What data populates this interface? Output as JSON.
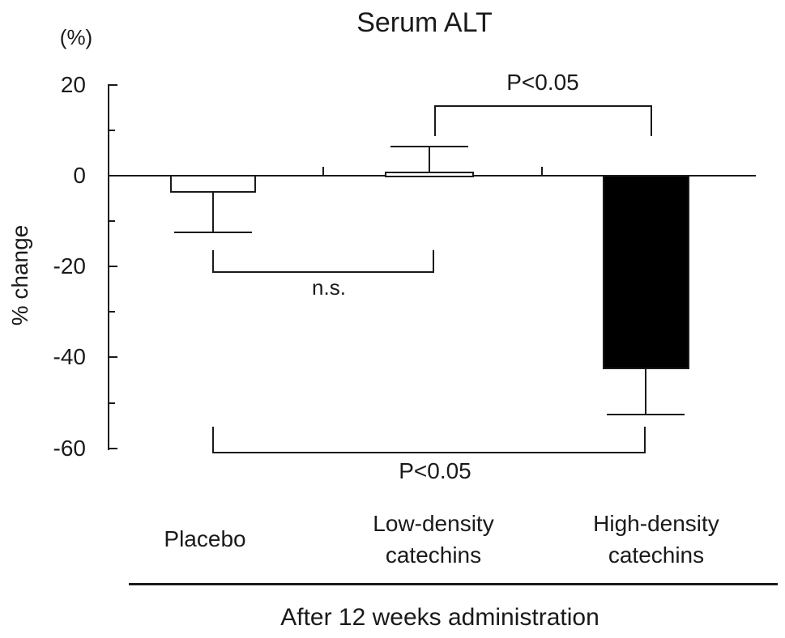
{
  "chart_data": {
    "type": "bar",
    "title": "Serum ALT",
    "ylabel": "% change",
    "xlabel": "After 12 weeks administration",
    "y_axis": {
      "unit": "(%)",
      "range": [
        -60,
        20
      ],
      "major_tick_step": 20,
      "minor_tick_step": 10,
      "ticks": [
        {
          "value": 20,
          "label": "20",
          "major": true
        },
        {
          "value": 10,
          "label": "",
          "major": false
        },
        {
          "value": 0,
          "label": "0",
          "major": true
        },
        {
          "value": -10,
          "label": "",
          "major": false
        },
        {
          "value": -20,
          "label": "-20",
          "major": true
        },
        {
          "value": -30,
          "label": "",
          "major": false
        },
        {
          "value": -40,
          "label": "-40",
          "major": true
        },
        {
          "value": -50,
          "label": "",
          "major": false
        },
        {
          "value": -60,
          "label": "-60",
          "major": true
        }
      ]
    },
    "categories": [
      "Placebo",
      "Low-density catechins",
      "High-density catechins"
    ],
    "category_lines": [
      [
        "Placebo"
      ],
      [
        "Low-density",
        "catechins"
      ],
      [
        "High-density",
        "catechins"
      ]
    ],
    "series": [
      {
        "category": "Placebo",
        "value": -3.5,
        "error": 9,
        "fill": "#ffffff"
      },
      {
        "category": "Low-density catechins",
        "value": 0.5,
        "error": 6,
        "fill": "#ffffff"
      },
      {
        "category": "High-density catechins",
        "value": -42.5,
        "error": 10,
        "fill": "#000000"
      }
    ],
    "annotations": [
      {
        "label": "n.s.",
        "between": [
          "Placebo",
          "Low-density catechins"
        ],
        "bracket_level_pct": -21
      },
      {
        "label": "P<0.05",
        "between": [
          "Low-density catechins",
          "High-density catechins"
        ],
        "bracket_level_pct": 15.5
      },
      {
        "label": "P<0.05",
        "between": [
          "Placebo",
          "High-density catechins"
        ],
        "bracket_level_pct": -61
      }
    ],
    "legend": null,
    "grid": false,
    "colors": {
      "ink": "#1a1a1a",
      "background": "#ffffff"
    }
  }
}
